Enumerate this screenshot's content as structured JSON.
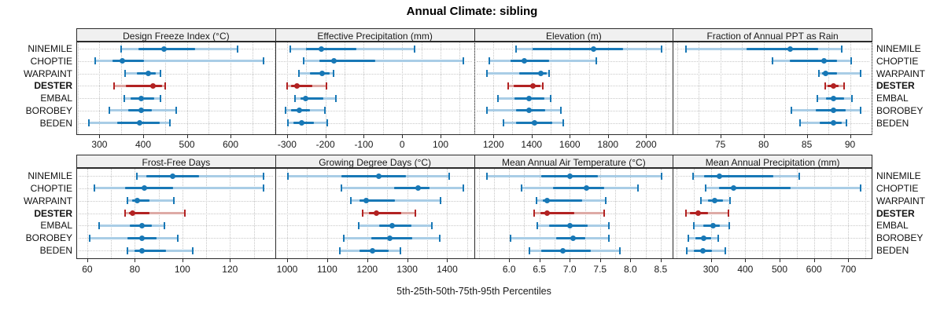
{
  "title": "Annual Climate: sibling",
  "axis_title": "5th-25th-50th-75th-95th Percentiles",
  "sites": [
    "NINEMILE",
    "CHOPTIE",
    "WARPAINT",
    "DESTER",
    "EMBAL",
    "BOROBEY",
    "BEDEN"
  ],
  "highlight_site": "DESTER",
  "colors": {
    "series_solid": "#1878b6",
    "series_faint": "#a9cde6",
    "highlight_solid": "#b22222",
    "highlight_faint": "#deaaa6",
    "header_bg": "#f0f0f0",
    "panel_border": "#2b2b2b",
    "grid": "#c6c6c6"
  },
  "chart_data": {
    "type": "dotplot-percentiles",
    "percentile_levels": [
      5,
      25,
      50,
      75,
      95
    ],
    "legend_position": "none",
    "grid": "dotted",
    "layout": "2x4 panels, shared site rows, highlighted site DESTER in red",
    "panels": [
      {
        "title": "Design Freeze Index (°C)",
        "xlim": [
          247,
          702
        ],
        "ticks": [
          300,
          400,
          500,
          600
        ],
        "tick_labels": [
          "300",
          "400",
          "500",
          "600"
        ],
        "grid_step": 50,
        "series": [
          {
            "name": "NINEMILE",
            "values": [
              350,
              390,
              448,
              519,
              616
            ]
          },
          {
            "name": "CHOPTIE",
            "values": [
              290,
              330,
              353,
              402,
              675
            ]
          },
          {
            "name": "WARPAINT",
            "values": [
              358,
              385,
              412,
              428,
              440
            ]
          },
          {
            "name": "DESTER",
            "values": [
              333,
              360,
              423,
              443,
              451
            ]
          },
          {
            "name": "EMBAL",
            "values": [
              357,
              372,
              396,
              425,
              440
            ]
          },
          {
            "name": "BOROBEY",
            "values": [
              322,
              365,
              395,
              420,
              475
            ]
          },
          {
            "name": "BEDEN",
            "values": [
              276,
              340,
              392,
              437,
              462
            ]
          }
        ]
      },
      {
        "title": "Effective Precipitation (mm)",
        "xlim": [
          -331,
          187
        ],
        "ticks": [
          -300,
          -200,
          -100,
          0,
          100
        ],
        "tick_labels": [
          "-300",
          "-200",
          "-100",
          "0",
          "100"
        ],
        "grid_step": 50,
        "series": [
          {
            "name": "NINEMILE",
            "values": [
              -292,
              -250,
              -210,
              -120,
              32
            ]
          },
          {
            "name": "CHOPTIE",
            "values": [
              -257,
              -215,
              -177,
              -70,
              160
            ]
          },
          {
            "name": "WARPAINT",
            "values": [
              -269,
              -240,
              -209,
              -190,
              -178
            ]
          },
          {
            "name": "DESTER",
            "values": [
              -299,
              -290,
              -274,
              -235,
              -197
            ]
          },
          {
            "name": "EMBAL",
            "values": [
              -279,
              -265,
              -252,
              -205,
              -172
            ]
          },
          {
            "name": "BOROBEY",
            "values": [
              -303,
              -290,
              -269,
              -240,
              -202
            ]
          },
          {
            "name": "BEDEN",
            "values": [
              -297,
              -283,
              -261,
              -230,
              -195
            ]
          }
        ]
      },
      {
        "title": "Elevation (m)",
        "xlim": [
          1098,
          2140
        ],
        "ticks": [
          1200,
          1400,
          1600,
          1800,
          2000
        ],
        "tick_labels": [
          "1200",
          "1400",
          "1600",
          "1800",
          "2000"
        ],
        "grid_step": 100,
        "series": [
          {
            "name": "NINEMILE",
            "values": [
              1320,
              1405,
              1724,
              1881,
              2081
            ]
          },
          {
            "name": "CHOPTIE",
            "values": [
              1179,
              1290,
              1361,
              1490,
              1741
            ]
          },
          {
            "name": "WARPAINT",
            "values": [
              1164,
              1334,
              1447,
              1479,
              1492
            ]
          },
          {
            "name": "DESTER",
            "values": [
              1279,
              1306,
              1407,
              1447,
              1460
            ]
          },
          {
            "name": "EMBAL",
            "values": [
              1223,
              1310,
              1386,
              1465,
              1500
            ]
          },
          {
            "name": "BOROBEY",
            "values": [
              1164,
              1320,
              1386,
              1470,
              1552
            ]
          },
          {
            "name": "BEDEN",
            "values": [
              1254,
              1320,
              1414,
              1510,
              1566
            ]
          }
        ]
      },
      {
        "title": "Fraction of Annual PPT as Rain",
        "xlim": [
          69.5,
          92.5
        ],
        "ticks": [
          75,
          80,
          85,
          90
        ],
        "tick_labels": [
          "75",
          "80",
          "85",
          "90"
        ],
        "grid_step": 2.5,
        "series": [
          {
            "name": "NINEMILE",
            "values": [
              71.0,
              78.0,
              83.1,
              86.3,
              89.0
            ]
          },
          {
            "name": "CHOPTIE",
            "values": [
              81.0,
              83.0,
              87.0,
              88.5,
              90.1
            ]
          },
          {
            "name": "WARPAINT",
            "values": [
              86.4,
              86.8,
              87.2,
              88.5,
              91.2
            ]
          },
          {
            "name": "DESTER",
            "values": [
              87.1,
              87.4,
              88.1,
              88.7,
              89.3
            ]
          },
          {
            "name": "EMBAL",
            "values": [
              86.2,
              87.2,
              88.1,
              89.3,
              90.2
            ]
          },
          {
            "name": "BOROBEY",
            "values": [
              83.2,
              86.0,
              88.1,
              89.5,
              91.2
            ]
          },
          {
            "name": "BEDEN",
            "values": [
              84.2,
              86.5,
              88.1,
              89.0,
              89.6
            ]
          }
        ]
      },
      {
        "title": "Frost-Free Days",
        "xlim": [
          55.4,
          139
        ],
        "ticks": [
          60,
          80,
          100,
          120
        ],
        "tick_labels": [
          "60",
          "80",
          "100",
          "120"
        ],
        "grid_step": 10,
        "series": [
          {
            "name": "NINEMILE",
            "values": [
              81,
              85,
              96,
              107,
              134
            ]
          },
          {
            "name": "CHOPTIE",
            "values": [
              63,
              76,
              84,
              96,
              134
            ]
          },
          {
            "name": "WARPAINT",
            "values": [
              77,
              79,
              81,
              86,
              96.5
            ]
          },
          {
            "name": "DESTER",
            "values": [
              76,
              77.5,
              79,
              86,
              101
            ]
          },
          {
            "name": "EMBAL",
            "values": [
              65,
              78,
              83,
              87,
              92.5
            ]
          },
          {
            "name": "BOROBEY",
            "values": [
              61,
              77,
              83,
              89,
              98
            ]
          },
          {
            "name": "BEDEN",
            "values": [
              77,
              80,
              83,
              93,
              104.5
            ]
          }
        ]
      },
      {
        "title": "Growing Degree Days (°C)",
        "xlim": [
          970,
          1467
        ],
        "ticks": [
          1000,
          1100,
          1200,
          1300,
          1400
        ],
        "tick_labels": [
          "1000",
          "1100",
          "1200",
          "1300",
          "1400"
        ],
        "grid_step": 50,
        "series": [
          {
            "name": "NINEMILE",
            "values": [
              1001,
              1136,
              1230,
              1296,
              1405
            ]
          },
          {
            "name": "CHOPTIE",
            "values": [
              1136,
              1268,
              1327,
              1356,
              1441
            ]
          },
          {
            "name": "WARPAINT",
            "values": [
              1159,
              1180,
              1197,
              1269,
              1383
            ]
          },
          {
            "name": "DESTER",
            "values": [
              1189,
              1205,
              1224,
              1285,
              1320
            ]
          },
          {
            "name": "EMBAL",
            "values": [
              1178,
              1230,
              1263,
              1310,
              1362
            ]
          },
          {
            "name": "BOROBEY",
            "values": [
              1141,
              1210,
              1257,
              1312,
              1382
            ]
          },
          {
            "name": "BEDEN",
            "values": [
              1132,
              1180,
              1214,
              1253,
              1283
            ]
          }
        ]
      },
      {
        "title": "Mean Annual Air Temperature (°C)",
        "xlim": [
          5.42,
          8.7
        ],
        "ticks": [
          6.0,
          6.5,
          7.0,
          7.5,
          8.0,
          8.5
        ],
        "tick_labels": [
          "6.0",
          "6.5",
          "7.0",
          "7.5",
          "8.0",
          "8.5"
        ],
        "grid_step": 0.25,
        "series": [
          {
            "name": "NINEMILE",
            "values": [
              5.63,
              6.53,
              7.0,
              7.47,
              8.52
            ]
          },
          {
            "name": "CHOPTIE",
            "values": [
              6.2,
              6.73,
              7.28,
              7.57,
              8.13
            ]
          },
          {
            "name": "WARPAINT",
            "values": [
              6.45,
              6.55,
              6.63,
              7.2,
              7.59
            ]
          },
          {
            "name": "DESTER",
            "values": [
              6.41,
              6.52,
              6.63,
              7.07,
              7.57
            ]
          },
          {
            "name": "EMBAL",
            "values": [
              6.47,
              6.66,
              7.0,
              7.29,
              7.65
            ]
          },
          {
            "name": "BOROBEY",
            "values": [
              6.02,
              6.77,
              7.05,
              7.25,
              7.64
            ]
          },
          {
            "name": "BEDEN",
            "values": [
              6.33,
              6.53,
              6.89,
              7.35,
              7.83
            ]
          }
        ]
      },
      {
        "title": "Mean Annual Precipitation (mm)",
        "xlim": [
          189,
          768
        ],
        "ticks": [
          300,
          400,
          500,
          600,
          700
        ],
        "tick_labels": [
          "300",
          "400",
          "500",
          "600",
          "700"
        ],
        "grid_step": 50,
        "series": [
          {
            "name": "NINEMILE",
            "values": [
              247,
              281,
              324,
              482,
              557
            ]
          },
          {
            "name": "CHOPTIE",
            "values": [
              285,
              323,
              366,
              533,
              737
            ]
          },
          {
            "name": "WARPAINT",
            "values": [
              271,
              291,
              311,
              334,
              356
            ]
          },
          {
            "name": "DESTER",
            "values": [
              227,
              238,
              262,
              292,
              352
            ]
          },
          {
            "name": "EMBAL",
            "values": [
              250,
              277,
              306,
              327,
              353
            ]
          },
          {
            "name": "BOROBEY",
            "values": [
              234,
              255,
              279,
              300,
              321
            ]
          },
          {
            "name": "BEDEN",
            "values": [
              230,
              250,
              276,
              304,
              342
            ]
          }
        ]
      }
    ]
  }
}
